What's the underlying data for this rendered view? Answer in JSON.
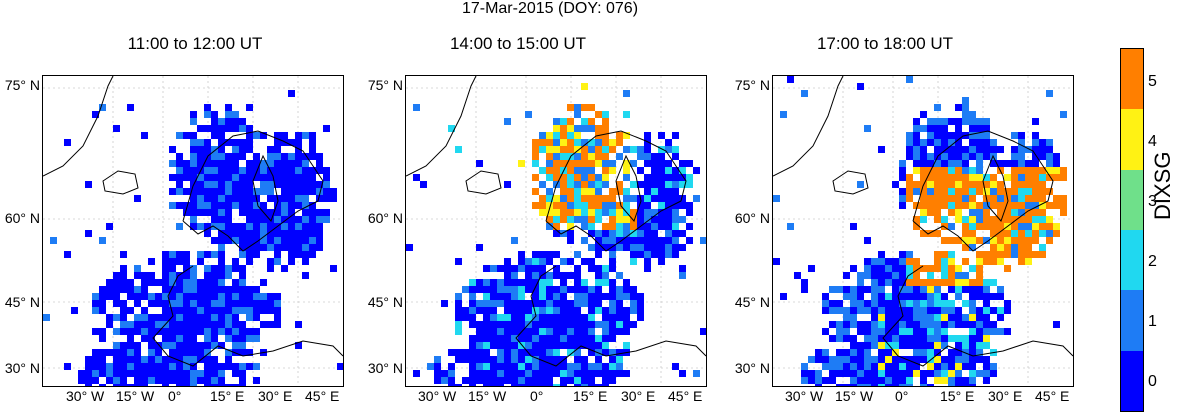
{
  "suptitle": "17-Mar-2015 (DOY: 076)",
  "panels": [
    {
      "title": "11:00 to 12:00 UT",
      "seed": 11,
      "high": 0
    },
    {
      "title": "14:00 to 15:00 UT",
      "seed": 23,
      "high": 1
    },
    {
      "title": "17:00 to 18:00 UT",
      "seed": 47,
      "high": 2
    }
  ],
  "lat_labels": [
    "75° N",
    "60° N",
    "45° N",
    "30° N"
  ],
  "lon_labels": [
    "30° W",
    "15° W",
    "0°",
    "15° E",
    "30° E",
    "45° E"
  ],
  "colorbar": {
    "label": "DIXSG",
    "ticks": [
      "0",
      "1",
      "2",
      "3",
      "4",
      "5"
    ],
    "colors": [
      "#0000ff",
      "#1e7cf5",
      "#20d8f0",
      "#6fe08a",
      "#fff214",
      "#ff7f00"
    ]
  }
}
